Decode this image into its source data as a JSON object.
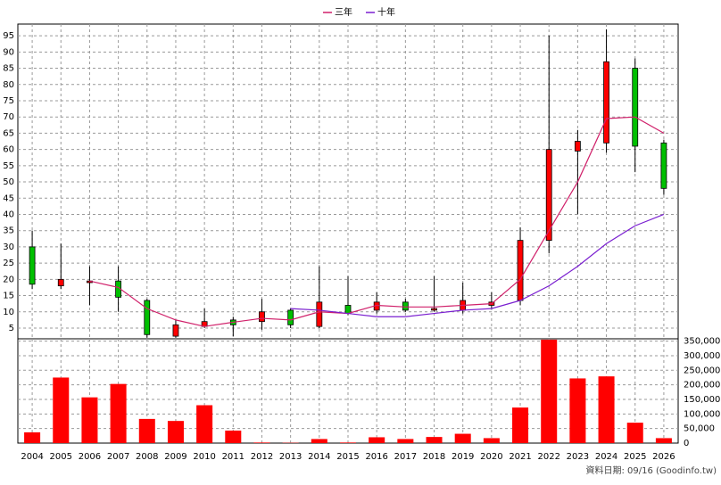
{
  "chart_data": {
    "type": "candlestick",
    "categories": [
      "2004",
      "2005",
      "2006",
      "2007",
      "2008",
      "2009",
      "2010",
      "2011",
      "2012",
      "2013",
      "2014",
      "2015",
      "2016",
      "2017",
      "2018",
      "2019",
      "2020",
      "2021",
      "2022",
      "2023",
      "2024",
      "2025",
      "2026"
    ],
    "open": [
      30,
      18,
      19,
      19.5,
      13.5,
      2.5,
      5.5,
      7.5,
      7,
      10.5,
      5.5,
      12,
      10.5,
      13,
      10.5,
      10.5,
      12,
      13.5,
      32,
      59.5,
      62,
      85,
      62
    ],
    "high": [
      35,
      31,
      24,
      24,
      14,
      7.5,
      11,
      8.5,
      14,
      11,
      24,
      21,
      16,
      14,
      21,
      19,
      16,
      36,
      95,
      66,
      97,
      88,
      63
    ],
    "low": [
      17,
      17,
      12,
      10,
      2,
      2,
      5,
      2.5,
      4.5,
      5,
      5,
      9,
      9.5,
      10,
      10,
      9.5,
      11,
      12,
      28,
      40,
      59,
      53,
      46
    ],
    "close": [
      18.5,
      20,
      19.5,
      14.5,
      3,
      6,
      7,
      6,
      10,
      6,
      13,
      9.5,
      13,
      10.5,
      11,
      13.5,
      13,
      32,
      60,
      62.5,
      87,
      61,
      48
    ],
    "up_color": "#ff0000",
    "down_color": "#00c000",
    "series": [
      {
        "name": "三年",
        "color": "#d0206a",
        "values": [
          null,
          null,
          19.5,
          17.5,
          11,
          7.5,
          5.5,
          6.8,
          8,
          7.5,
          10,
          9.5,
          12,
          11.5,
          11.5,
          12,
          12.5,
          20,
          35,
          50,
          69.5,
          70,
          65
        ]
      },
      {
        "name": "十年",
        "color": "#7a1fd0",
        "values": [
          null,
          null,
          null,
          null,
          null,
          null,
          null,
          null,
          null,
          11,
          10.5,
          9.5,
          8.5,
          8.5,
          9.5,
          10.5,
          11,
          13.5,
          18,
          24,
          31,
          36.5,
          40
        ]
      }
    ],
    "ylim": [
      1.7,
      98.6
    ],
    "yticks": [
      5,
      10,
      15,
      20,
      25,
      30,
      35,
      40,
      45,
      50,
      55,
      60,
      65,
      70,
      75,
      80,
      85,
      90,
      95
    ],
    "grid": true,
    "legend": "top",
    "volume": {
      "type": "bar",
      "color": "#ff0000",
      "values": [
        37000,
        225000,
        157000,
        203000,
        83000,
        76000,
        130000,
        43000,
        2000,
        1000,
        14000,
        2000,
        20000,
        14000,
        21000,
        32000,
        17000,
        122000,
        355000,
        222000,
        229000,
        70000,
        17000
      ],
      "ylim": [
        0,
        358000
      ],
      "yticks": [
        0,
        {
          "value": 50000,
          "label": "50,000"
        },
        {
          "value": 100000,
          "label": "100,000"
        },
        {
          "value": 150000,
          "label": "150,000"
        },
        {
          "value": 200000,
          "label": "200,000"
        },
        {
          "value": 250000,
          "label": "250,000"
        },
        {
          "value": 300000,
          "label": "300,000"
        },
        {
          "value": 350000,
          "label": "350,000"
        }
      ]
    },
    "annotation": "資料日期: 09/16  (Goodinfo.tw)"
  }
}
